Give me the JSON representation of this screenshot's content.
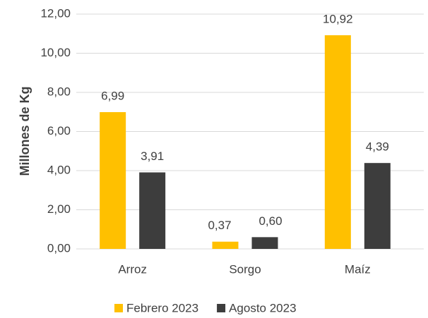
{
  "chart_data": {
    "type": "bar",
    "ylabel": "Millones de Kg",
    "categories": [
      "Arroz",
      "Sorgo",
      "Maíz"
    ],
    "series": [
      {
        "name": "Febrero 2023",
        "color": "#ffc000",
        "values": [
          6.99,
          0.37,
          10.92
        ],
        "value_labels": [
          "6,99",
          "0,37",
          "10,92"
        ]
      },
      {
        "name": "Agosto 2023",
        "color": "#3d3d3d",
        "values": [
          3.91,
          0.6,
          4.39
        ],
        "value_labels": [
          "3,91",
          "0,60",
          "4,39"
        ]
      }
    ],
    "ylim": [
      0,
      12
    ],
    "yticks": [
      {
        "value": 0,
        "label": "0,00"
      },
      {
        "value": 2,
        "label": "2,00"
      },
      {
        "value": 4,
        "label": "4,00"
      },
      {
        "value": 6,
        "label": "6,00"
      },
      {
        "value": 8,
        "label": "8,00"
      },
      {
        "value": 10,
        "label": "10,00"
      },
      {
        "value": 12,
        "label": "12,00"
      }
    ],
    "grid": true,
    "legend": "bottom"
  }
}
